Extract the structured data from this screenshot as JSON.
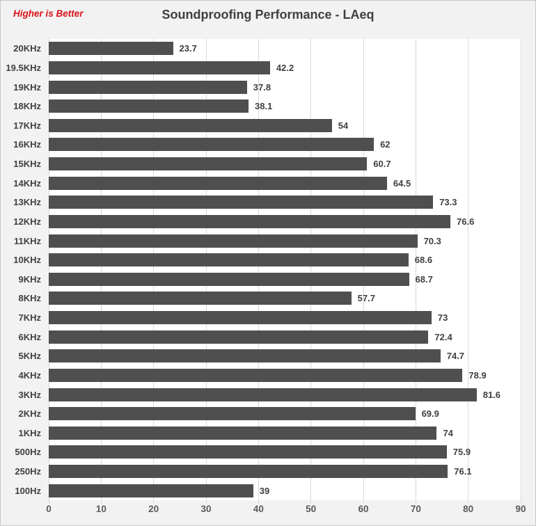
{
  "header": {
    "note": "Higher is Better",
    "title": "Soundproofing Performance - LAeq"
  },
  "colors": {
    "bar": "#4f4f4f",
    "note": "#da1218",
    "title": "#404040",
    "label": "#3f3f3f",
    "tick": "#595959",
    "grid": "#d9d9d9",
    "canvas-bg": "#f2f2f2",
    "plot-bg": "#ffffff",
    "border": "#c6c6c6"
  },
  "chart_data": {
    "type": "bar",
    "orientation": "horizontal",
    "title": "Soundproofing Performance - LAeq",
    "annotation": "Higher is Better",
    "categories": [
      "20KHz",
      "19.5KHz",
      "19KHz",
      "18KHz",
      "17KHz",
      "16KHz",
      "15KHz",
      "14KHz",
      "13KHz",
      "12KHz",
      "11KHz",
      "10KHz",
      "9KHz",
      "8KHz",
      "7KHz",
      "6KHz",
      "5KHz",
      "4KHz",
      "3KHz",
      "2KHz",
      "1KHz",
      "500Hz",
      "250Hz",
      "100Hz"
    ],
    "values": [
      23.7,
      42.2,
      37.8,
      38.1,
      54,
      62,
      60.7,
      64.5,
      73.3,
      76.6,
      70.3,
      68.6,
      68.7,
      57.7,
      73,
      72.4,
      74.7,
      78.9,
      81.6,
      69.9,
      74,
      75.9,
      76.1,
      39
    ],
    "value_labels": [
      "23.7",
      "42.2",
      "37.8",
      "38.1",
      "54",
      "62",
      "60.7",
      "64.5",
      "73.3",
      "76.6",
      "70.3",
      "68.6",
      "68.7",
      "57.7",
      "73",
      "72.4",
      "74.7",
      "78.9",
      "81.6",
      "69.9",
      "74",
      "75.9",
      "76.1",
      "39"
    ],
    "xlabel": "",
    "ylabel": "",
    "xlim": [
      0,
      90
    ],
    "xticks": [
      0,
      10,
      20,
      30,
      40,
      50,
      60,
      70,
      80,
      90
    ],
    "grid": true,
    "legend": false
  }
}
